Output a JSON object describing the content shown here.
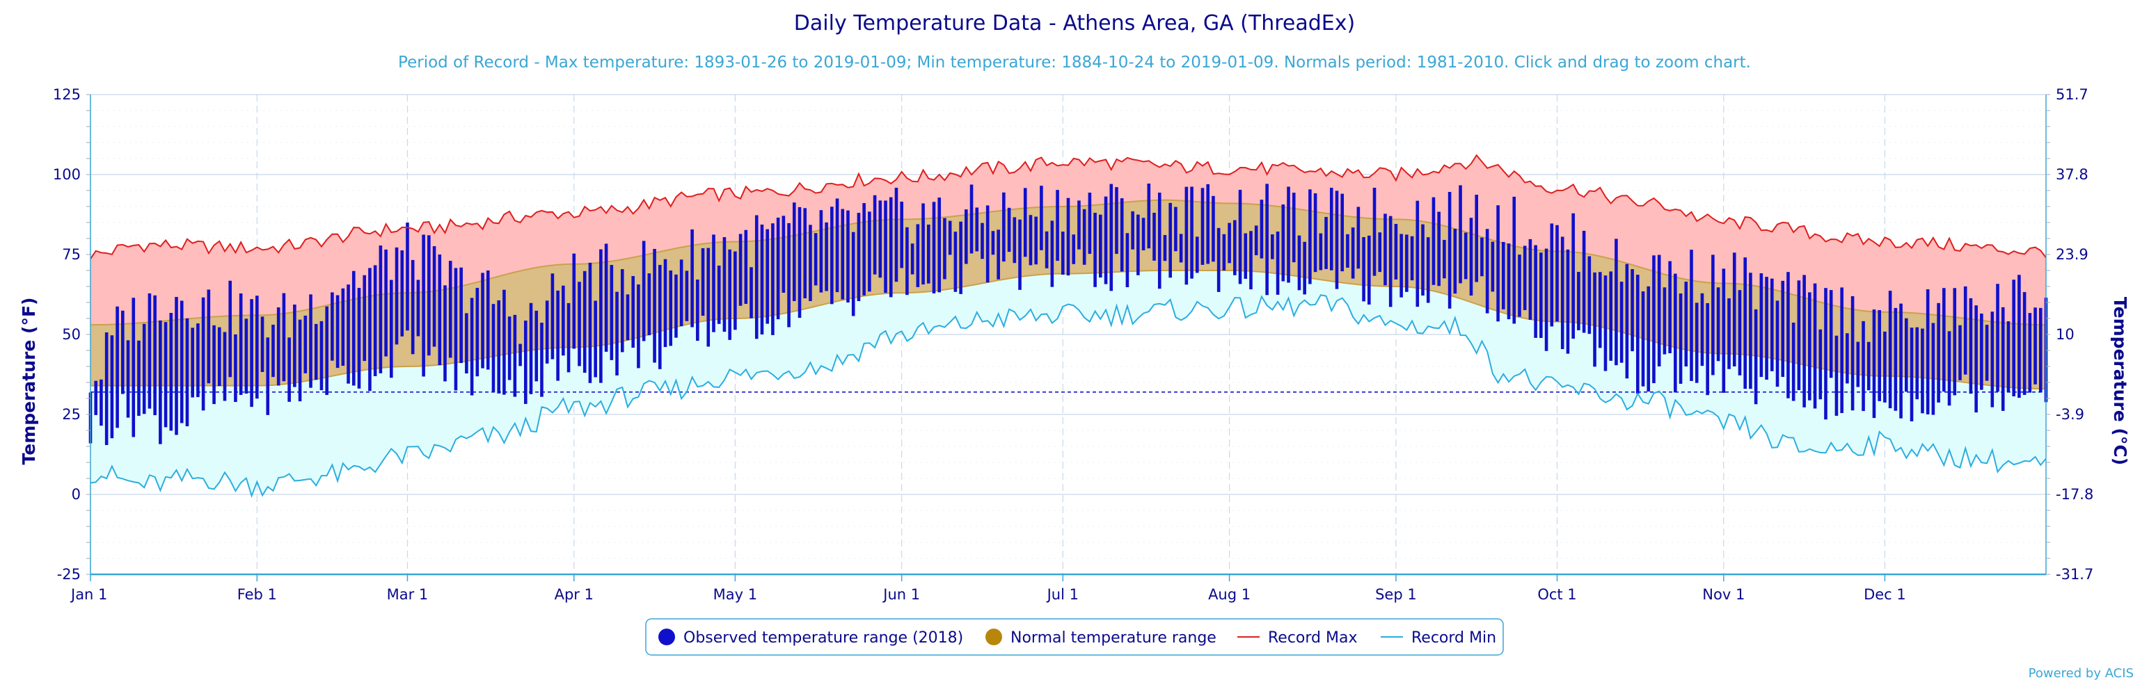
{
  "chart_data": {
    "type": "area",
    "title": "Daily Temperature Data - Athens Area, GA (ThreadEx)",
    "subtitle": "Period of Record - Max temperature: 1893-01-26 to 2019-01-09; Min temperature: 1884-10-24 to 2019-01-09. Normals period: 1981-2010. Click and drag to zoom chart.",
    "xlabel": "",
    "ylabel": "Temperature (°F)",
    "ylabel_right": "Temperature (°C)",
    "ylim": [
      -25,
      125
    ],
    "yticks": [
      "-25",
      "0",
      "25",
      "50",
      "75",
      "100",
      "125"
    ],
    "yticks_right": [
      "-31.7",
      "-17.8",
      "-3.9",
      "10",
      "23.9",
      "37.8",
      "51.7"
    ],
    "x_ticks": [
      "Jan 1",
      "Feb 1",
      "Mar 1",
      "Apr 1",
      "May 1",
      "Jun 1",
      "Jul 1",
      "Aug 1",
      "Sep 1",
      "Oct 1",
      "Nov 1",
      "Dec 1"
    ],
    "x_tick_days": [
      0,
      31,
      59,
      90,
      120,
      151,
      181,
      212,
      243,
      273,
      304,
      334
    ],
    "days_in_year": 365,
    "freezing_line": 32,
    "grid": true,
    "legend_placement": "bottom",
    "colors": {
      "observed": "#1010cc",
      "normal": "#c9a24a",
      "normal_fill": "#dbbd86",
      "record_max": "#e01e1e",
      "record_max_fill": "#ffbdbd",
      "record_min": "#2aaee0",
      "record_min_fill": "#e0fdfd",
      "grid": "#c7d8ea",
      "axis": "#3aa6d6",
      "freezing": "#1515cc"
    },
    "series_keypoints": {
      "record_max": {
        "x": [
          0,
          10,
          31,
          59,
          90,
          120,
          151,
          170,
          181,
          212,
          243,
          257,
          273,
          290,
          304,
          334,
          364
        ],
        "y": [
          75,
          78,
          77,
          83,
          88,
          94,
          99,
          102,
          104,
          102,
          100,
          104,
          96,
          91,
          85,
          79,
          76
        ]
      },
      "record_min": {
        "x": [
          0,
          10,
          20,
          31,
          45,
          59,
          75,
          90,
          105,
          120,
          135,
          151,
          170,
          181,
          212,
          230,
          243,
          255,
          263,
          273,
          290,
          304,
          320,
          334,
          345,
          364
        ],
        "y": [
          7,
          3,
          5,
          3,
          6,
          12,
          18,
          27,
          32,
          37,
          40,
          50,
          55,
          56,
          58,
          59,
          53,
          52,
          38,
          33,
          29,
          22,
          14,
          16,
          12,
          9
        ]
      },
      "normal_high": {
        "x": [
          0,
          31,
          59,
          90,
          120,
          151,
          181,
          200,
          212,
          243,
          273,
          304,
          334,
          364
        ],
        "y": [
          53,
          56,
          63,
          72,
          79,
          86,
          90,
          92,
          91,
          86,
          76,
          66,
          57,
          53
        ]
      },
      "normal_low": {
        "x": [
          0,
          31,
          59,
          90,
          120,
          151,
          181,
          200,
          212,
          243,
          273,
          304,
          334,
          364
        ],
        "y": [
          34,
          34,
          40,
          46,
          55,
          63,
          69,
          70,
          70,
          65,
          54,
          44,
          37,
          33
        ]
      }
    },
    "observed_2018_note": "Observed daily highs/lows for 2018 drawn as vertical bars; values approximated from the figure",
    "observed_2018_keypoints": {
      "x": [
        0,
        7,
        15,
        25,
        35,
        50,
        59,
        70,
        82,
        90,
        105,
        120,
        135,
        151,
        166,
        181,
        196,
        212,
        227,
        243,
        258,
        273,
        288,
        304,
        319,
        334,
        349,
        364
      ],
      "high": [
        36,
        55,
        62,
        58,
        55,
        68,
        76,
        65,
        55,
        68,
        72,
        79,
        84,
        87,
        88,
        90,
        90,
        89,
        87,
        88,
        88,
        80,
        70,
        68,
        60,
        55,
        58,
        62
      ],
      "low": [
        20,
        25,
        22,
        30,
        32,
        38,
        45,
        36,
        35,
        40,
        45,
        53,
        60,
        65,
        70,
        70,
        70,
        70,
        66,
        65,
        62,
        50,
        38,
        36,
        30,
        28,
        32,
        34
      ]
    },
    "legend": [
      {
        "label": "Observed temperature range (2018)",
        "marker": "circle",
        "color": "#1010cc"
      },
      {
        "label": "Normal temperature range",
        "marker": "circle",
        "color": "#b8860b"
      },
      {
        "label": "Record Max",
        "marker": "line",
        "color": "#e01e1e"
      },
      {
        "label": "Record Min",
        "marker": "line",
        "color": "#2aaee0"
      }
    ],
    "credit": "Powered by ACIS"
  }
}
